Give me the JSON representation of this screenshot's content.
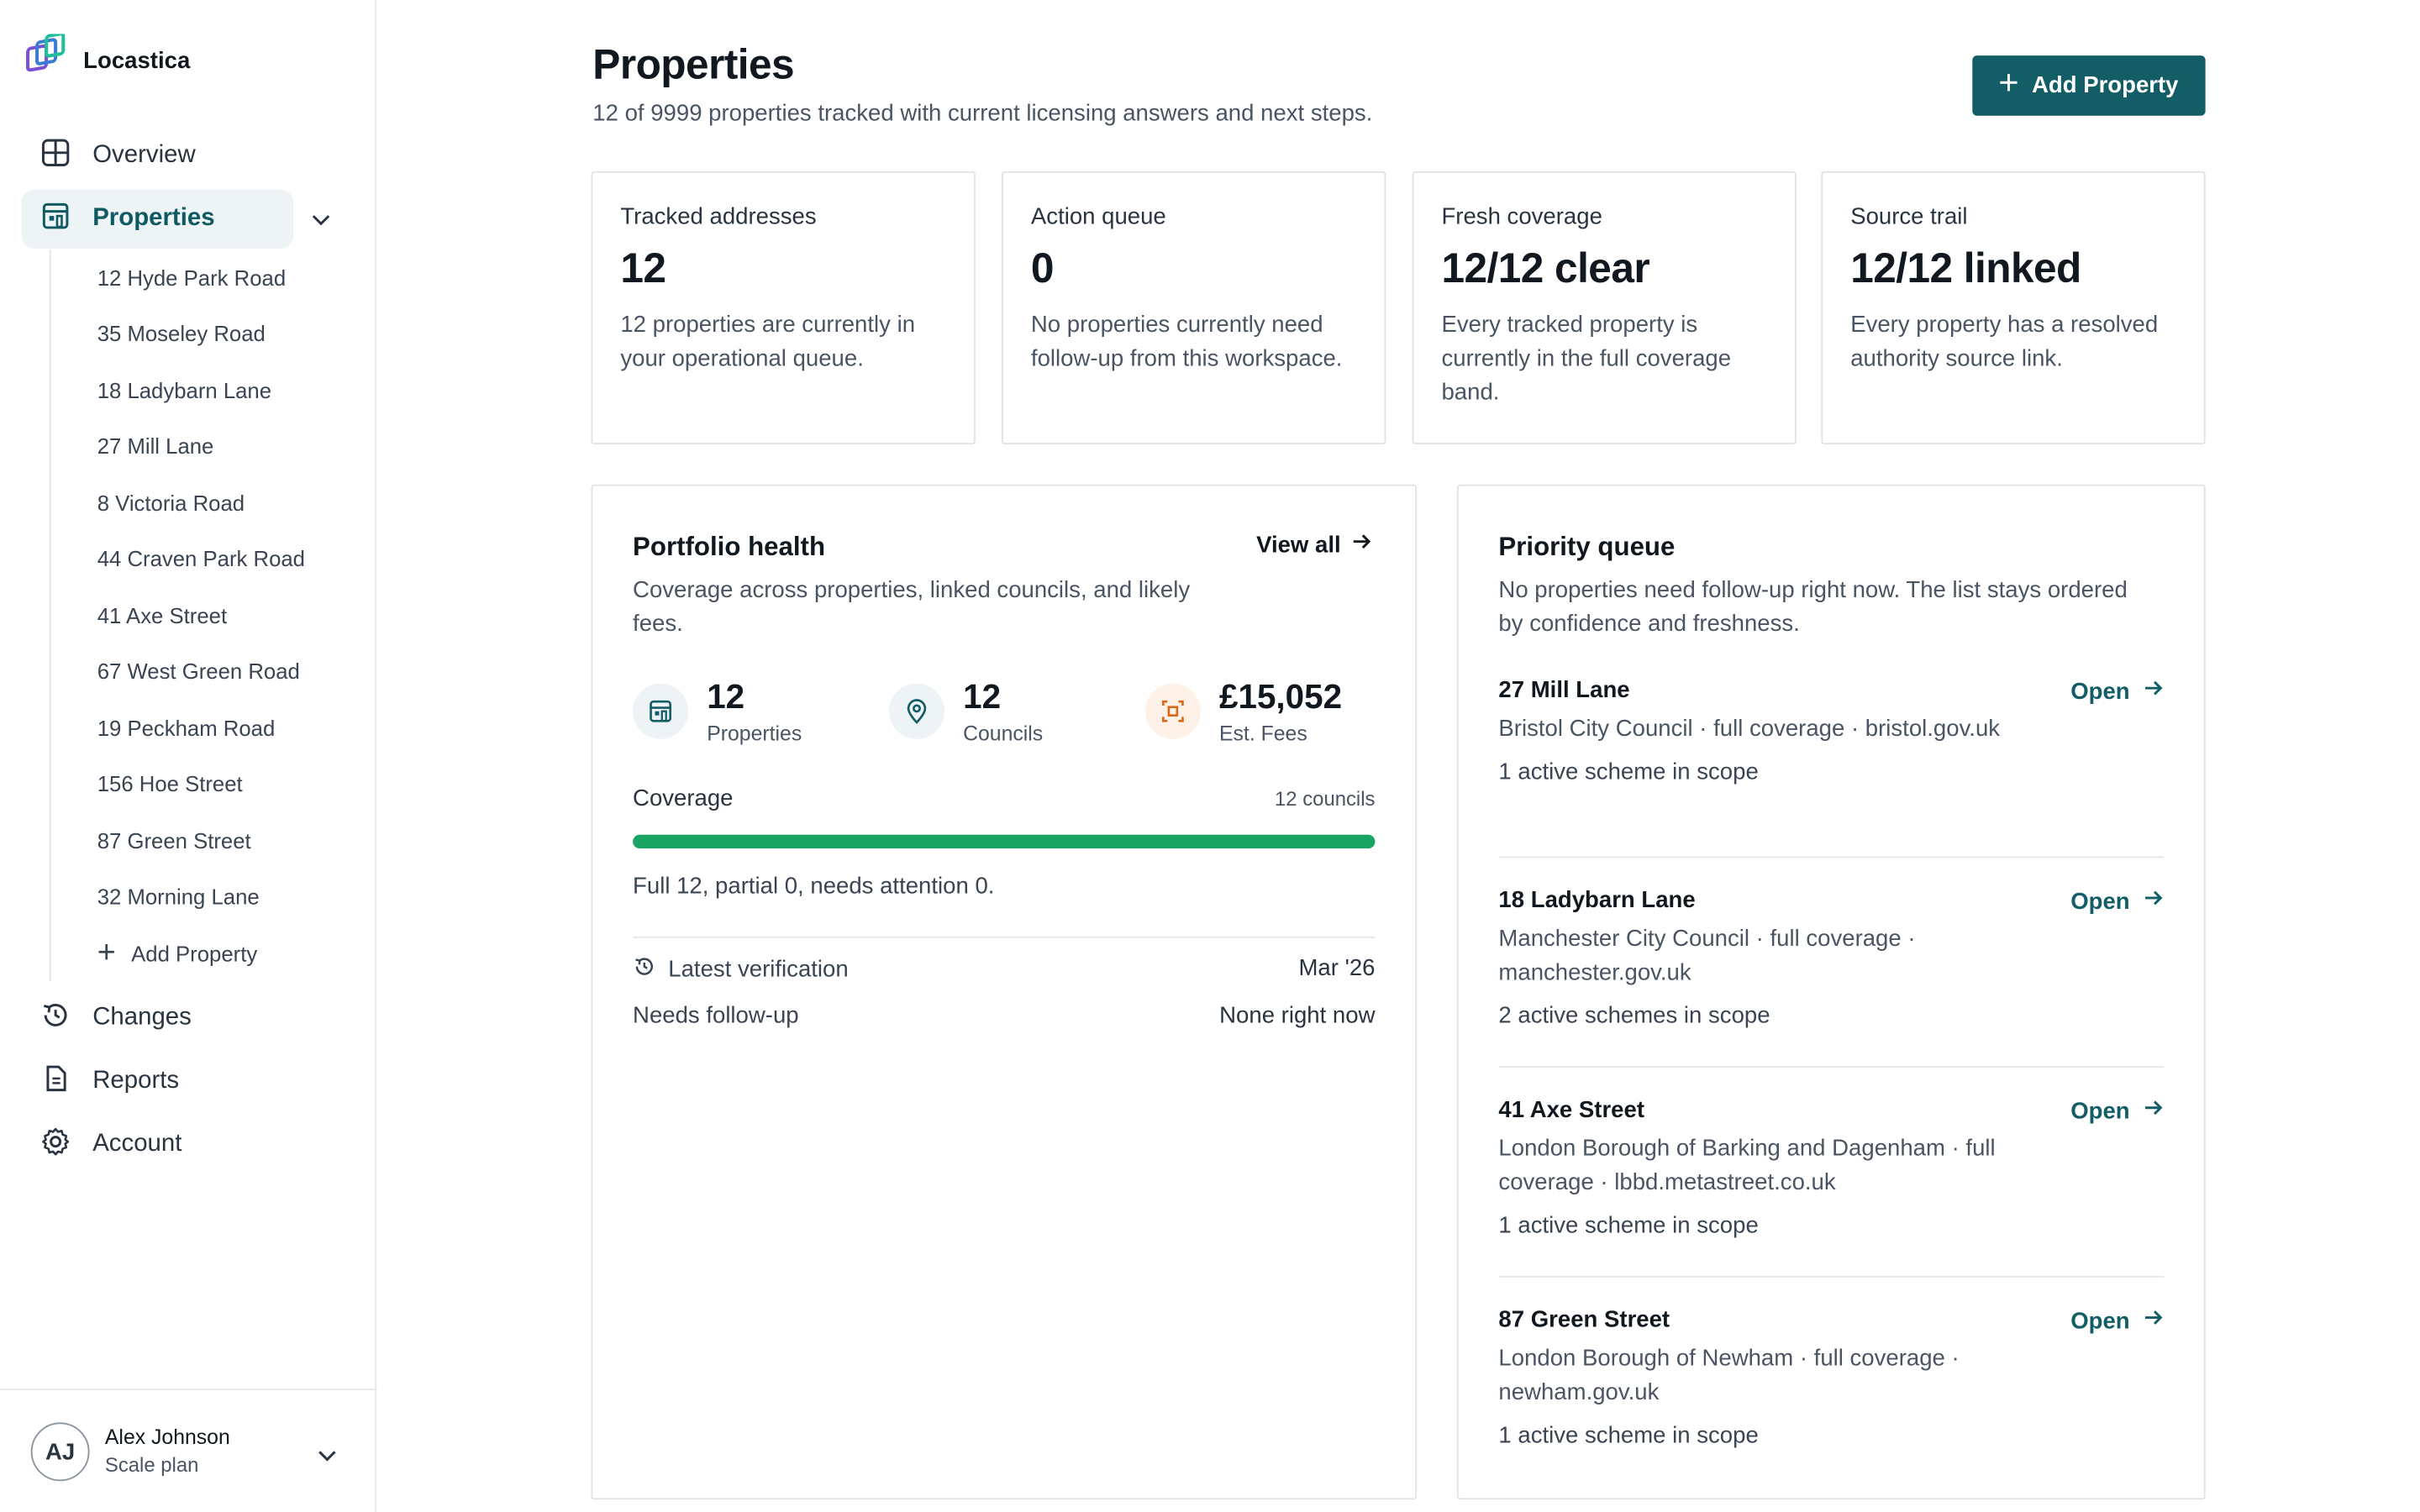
{
  "app": {
    "name": "Locastica"
  },
  "sidebar": {
    "nav": [
      {
        "label": "Overview",
        "icon": "grid-icon"
      },
      {
        "label": "Properties",
        "icon": "building-icon"
      },
      {
        "label": "Changes",
        "icon": "history-icon"
      },
      {
        "label": "Reports",
        "icon": "document-icon"
      },
      {
        "label": "Account",
        "icon": "gear-icon"
      }
    ],
    "properties": [
      "12 Hyde Park Road",
      "35 Moseley Road",
      "18 Ladybarn Lane",
      "27 Mill Lane",
      "8 Victoria Road",
      "44 Craven Park Road",
      "41 Axe Street",
      "67 West Green Road",
      "19 Peckham Road",
      "156 Hoe Street",
      "87 Green Street",
      "32 Morning Lane"
    ],
    "add_property": "Add Property",
    "user": {
      "initials": "AJ",
      "name": "Alex Johnson",
      "plan": "Scale plan"
    }
  },
  "header": {
    "title": "Properties",
    "subtitle": "12 of 9999 properties tracked with current licensing answers and next steps.",
    "add_button": "Add Property"
  },
  "stats": [
    {
      "label": "Tracked addresses",
      "value": "12",
      "desc": "12 properties are currently in your operational queue."
    },
    {
      "label": "Action queue",
      "value": "0",
      "desc": "No properties currently need follow-up from this workspace."
    },
    {
      "label": "Fresh coverage",
      "value": "12/12 clear",
      "desc": "Every tracked property is currently in the full coverage band."
    },
    {
      "label": "Source trail",
      "value": "12/12 linked",
      "desc": "Every property has a resolved authority source link."
    }
  ],
  "portfolio": {
    "title": "Portfolio health",
    "view_all": "View all",
    "desc": "Coverage across properties, linked councils, and likely fees.",
    "metrics": [
      {
        "value": "12",
        "label": "Properties"
      },
      {
        "value": "12",
        "label": "Councils"
      },
      {
        "value": "£15,052",
        "label": "Est. Fees"
      }
    ],
    "coverage_label": "Coverage",
    "coverage_count": "12 councils",
    "coverage_fraction": 1.0,
    "coverage_note": "Full 12, partial 0, needs attention 0.",
    "latest_label": "Latest verification",
    "latest_value": "Mar '26",
    "followup_label": "Needs follow-up",
    "followup_value": "None right now"
  },
  "queue": {
    "title": "Priority queue",
    "desc": "No properties need follow-up right now. The list stays ordered by confidence and freshness.",
    "open_label": "Open",
    "items": [
      {
        "name": "27 Mill Lane",
        "detail": "Bristol City Council · full coverage · bristol.gov.uk",
        "scope": "1 active scheme in scope"
      },
      {
        "name": "18 Ladybarn Lane",
        "detail": "Manchester City Council · full coverage · manchester.gov.uk",
        "scope": "2 active schemes in scope"
      },
      {
        "name": "41 Axe Street",
        "detail": "London Borough of Barking and Dagenham · full coverage · lbbd.metastreet.co.uk",
        "scope": "1 active scheme in scope"
      },
      {
        "name": "87 Green Street",
        "detail": "London Borough of Newham · full coverage · newham.gov.uk",
        "scope": "1 active scheme in scope"
      }
    ]
  },
  "colors": {
    "brand": "#135e66",
    "progress": "#1aa463",
    "accent_orange": "#d9691c"
  }
}
